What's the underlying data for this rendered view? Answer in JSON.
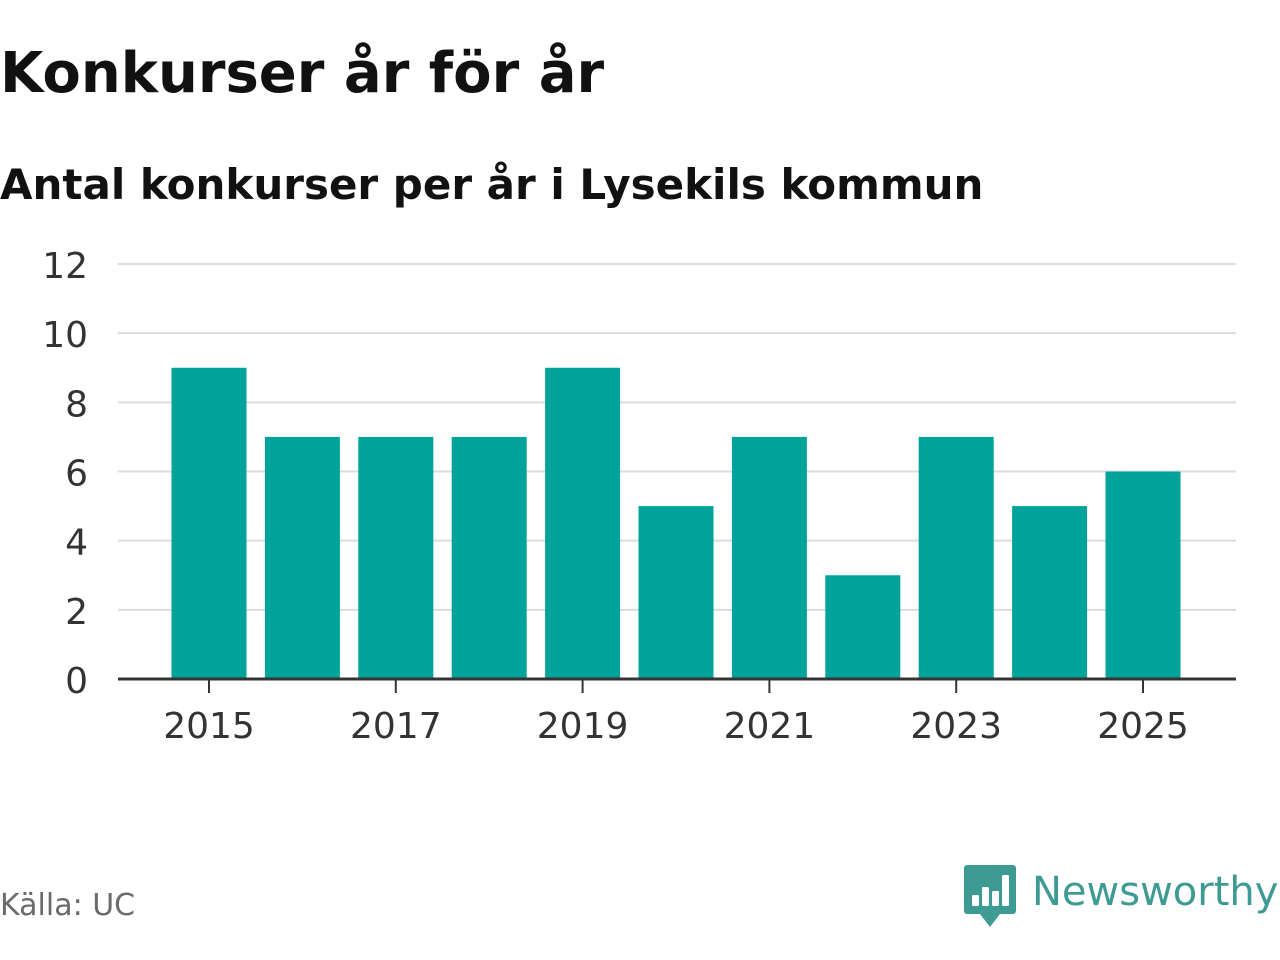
{
  "title": "Konkurser år för år",
  "subtitle": "Antal konkurser per år i Lysekils kommun",
  "source": "Källa: UC",
  "brand": {
    "name": "Newsworthy",
    "icon": "newsworthy-logo-icon",
    "color": "#3e9b93"
  },
  "colors": {
    "bar": "#00a39a",
    "grid": "#dcdcdc",
    "axis": "#333333",
    "tick_label": "#333333"
  },
  "chart_data": {
    "type": "bar",
    "categories": [
      "2015",
      "2016",
      "2017",
      "2018",
      "2019",
      "2020",
      "2021",
      "2022",
      "2023",
      "2024",
      "2025"
    ],
    "series": [
      {
        "values": [
          9,
          7,
          7,
          7,
          9,
          5,
          7,
          3,
          7,
          5,
          6
        ]
      }
    ],
    "x_tick_labels": [
      "2015",
      "2017",
      "2019",
      "2021",
      "2023",
      "2025"
    ],
    "y_ticks": [
      0,
      2,
      4,
      6,
      8,
      10,
      12
    ],
    "ylim": [
      0,
      12
    ],
    "xlabel": "",
    "ylabel": "",
    "grid": true,
    "legend": "none"
  }
}
